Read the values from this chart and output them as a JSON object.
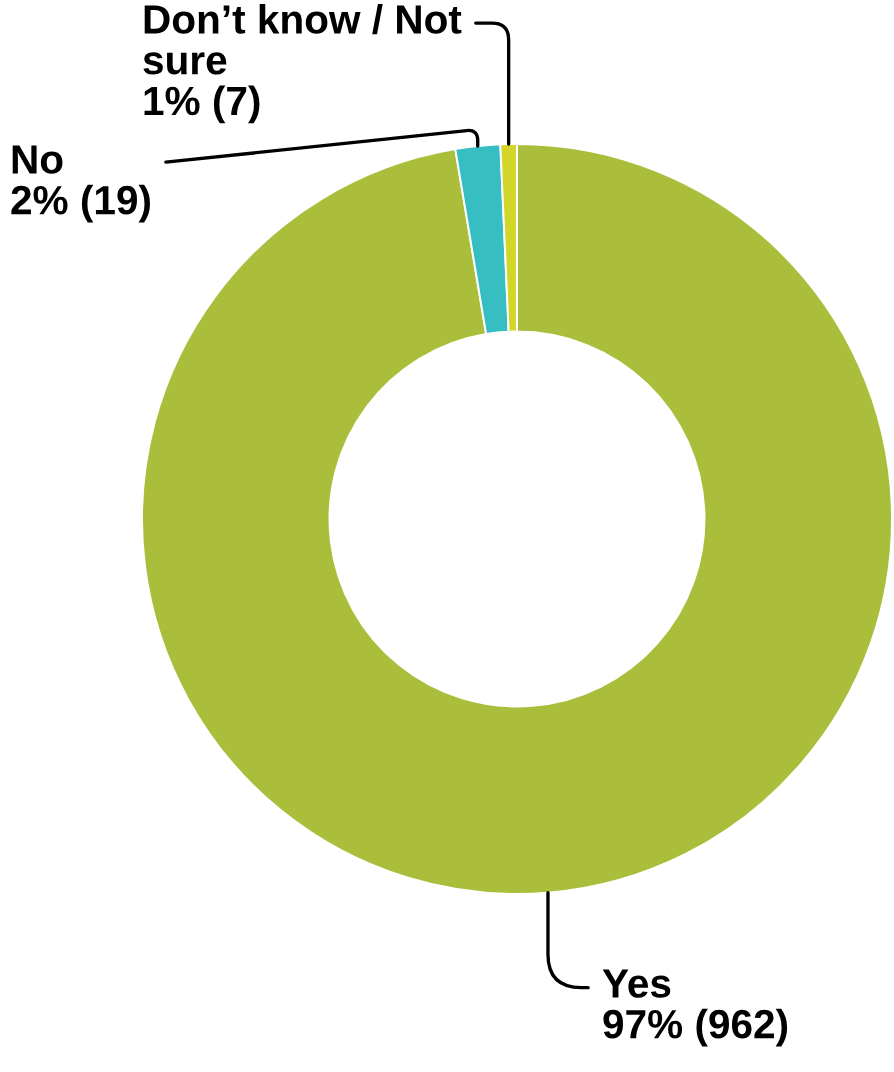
{
  "chart_data": {
    "type": "donut",
    "categories": [
      "Yes",
      "No",
      "Don’t know / Not sure"
    ],
    "values": [
      962,
      19,
      7
    ],
    "value_labels": [
      "97% (962)",
      "2% (19)",
      "1% (7)"
    ],
    "colors": [
      "#aabe3b",
      "#37bec3",
      "#d3d62a"
    ]
  }
}
